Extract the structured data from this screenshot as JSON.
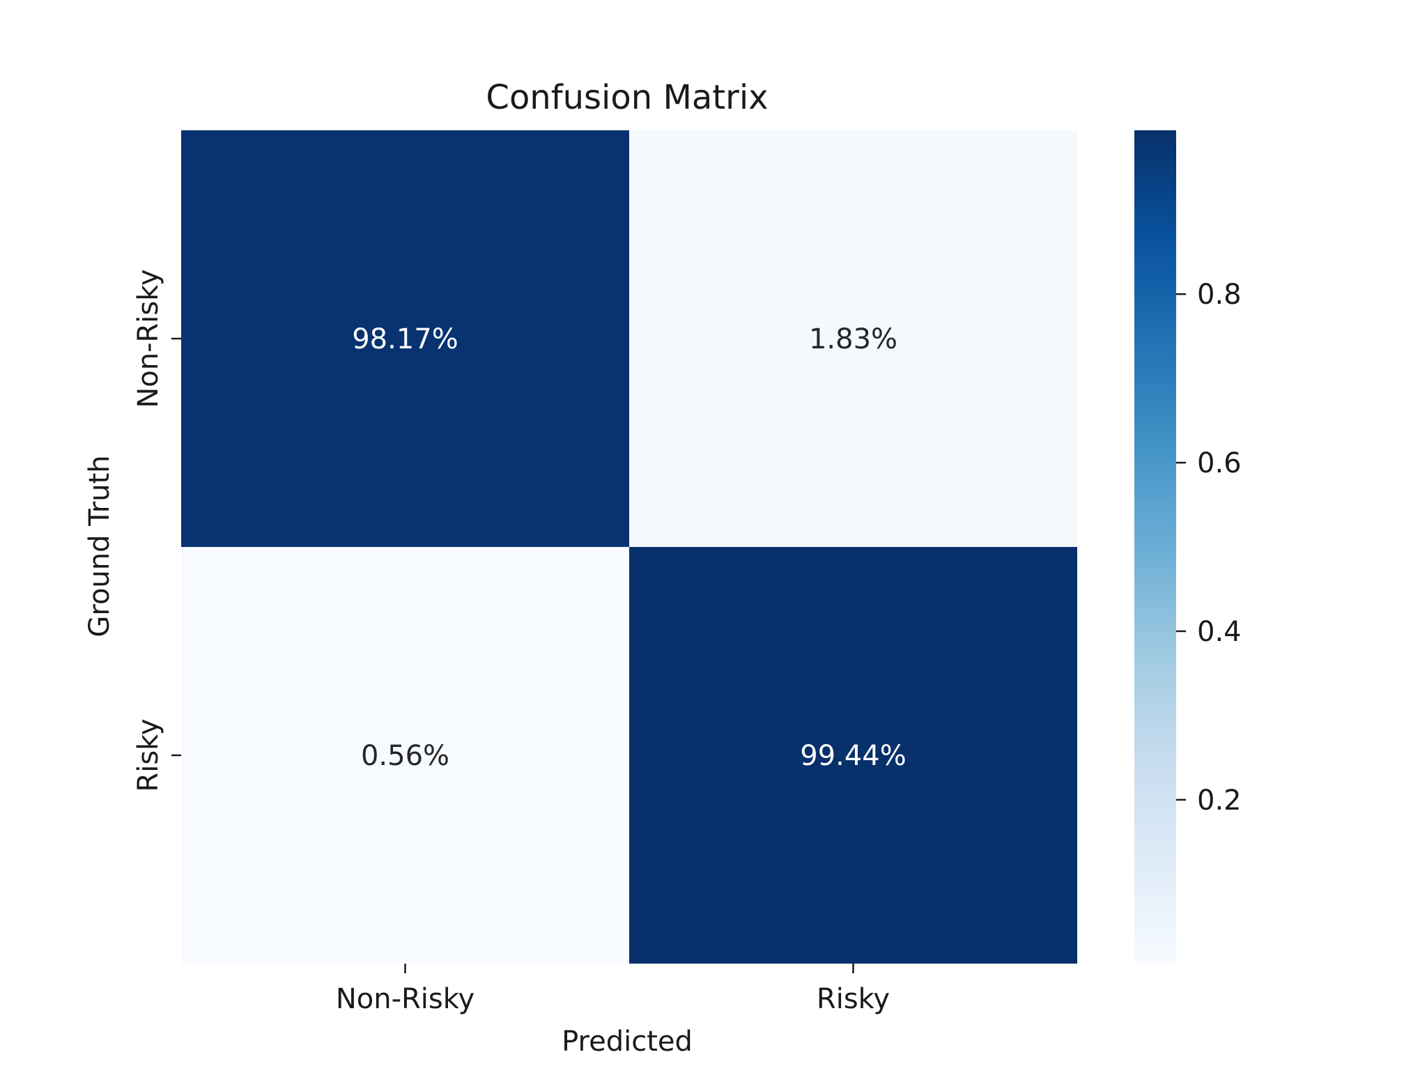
{
  "chart_data": {
    "type": "heatmap",
    "title": "Confusion Matrix",
    "xlabel": "Predicted",
    "ylabel": "Ground Truth",
    "x_categories": [
      "Non-Risky",
      "Risky"
    ],
    "y_categories": [
      "Non-Risky",
      "Risky"
    ],
    "values": [
      [
        0.9817,
        0.0183
      ],
      [
        0.0056,
        0.9944
      ]
    ],
    "cell_labels": [
      [
        "98.17%",
        "1.83%"
      ],
      [
        "0.56%",
        "99.44%"
      ]
    ],
    "colormap": "Blues",
    "colorbar": {
      "range": [
        0.0056,
        0.9944
      ],
      "ticks": [
        0.2,
        0.4,
        0.6,
        0.8
      ],
      "tick_labels": [
        "0.2",
        "0.4",
        "0.6",
        "0.8"
      ]
    },
    "grid": false
  },
  "colors": {
    "low": "#f7fbff",
    "high": "#08306b",
    "text_light": "#ffffff",
    "text_dark": "#262626"
  }
}
